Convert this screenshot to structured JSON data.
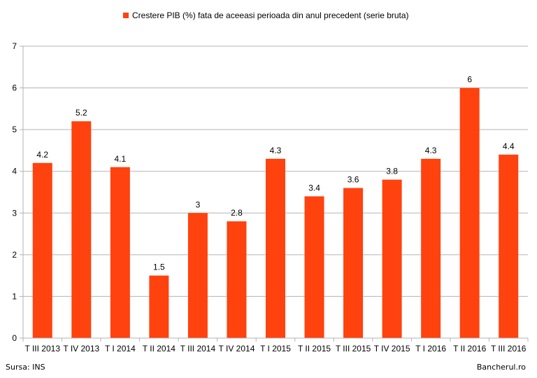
{
  "chart_data": {
    "type": "bar",
    "categories": [
      "T III 2013",
      "T IV 2013",
      "T I 2014",
      "T II 2014",
      "T III 2014",
      "T IV 2014",
      "T I 2015",
      "T II 2015",
      "T III 2015",
      "T IV 2015",
      "T I 2016",
      "T II 2016",
      "T III 2016"
    ],
    "series": [
      {
        "name": "Crestere PIB (%) fata de aceeasi perioada din anul precedent (serie bruta)",
        "color": "#ff420e",
        "values": [
          4.2,
          5.2,
          4.1,
          1.5,
          3,
          2.8,
          4.3,
          3.4,
          3.6,
          3.8,
          4.3,
          6,
          4.4
        ],
        "labels": [
          "4.2",
          "5.2",
          "4.1",
          "1.5",
          "3",
          "2.8",
          "4.3",
          "3.4",
          "3.6",
          "3.8",
          "4.3",
          "6",
          "4.4"
        ]
      }
    ],
    "ylim": [
      0,
      7
    ],
    "yticks": [
      0,
      1,
      2,
      3,
      4,
      5,
      6,
      7
    ],
    "grid": true,
    "legend": "top-center"
  },
  "footer": {
    "source": "Sursa: INS",
    "credit": "Bancherul.ro"
  }
}
